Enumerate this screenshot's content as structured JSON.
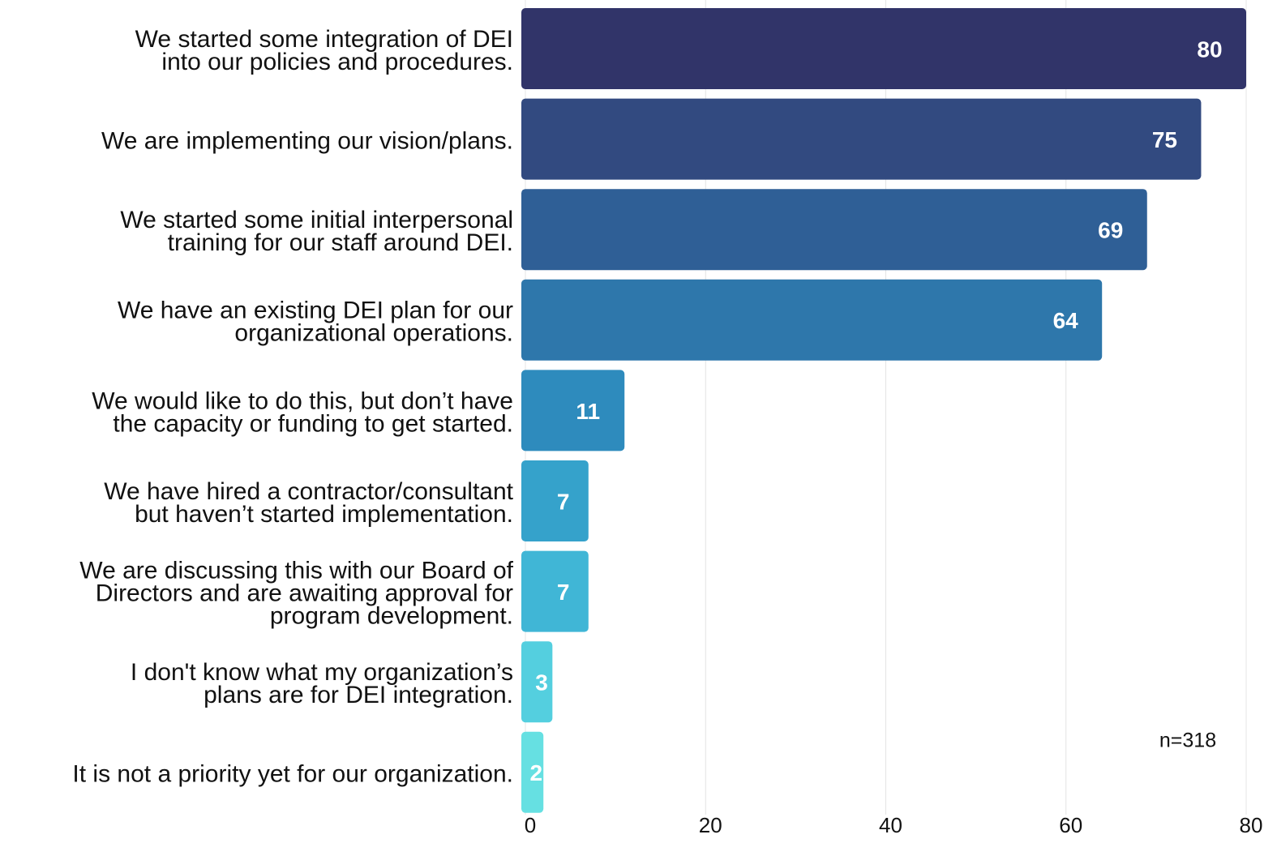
{
  "chart_data": {
    "type": "bar",
    "orientation": "horizontal",
    "categories": [
      [
        "We started some integration of DEI",
        "into our policies and procedures."
      ],
      [
        "We are implementing our vision/plans."
      ],
      [
        "We started some initial interpersonal",
        "training for our staff around DEI."
      ],
      [
        "We have an existing DEI plan for our",
        "organizational operations."
      ],
      [
        "We would like to do this, but don’t have",
        "the capacity or funding to get started."
      ],
      [
        "We have hired a contractor/consultant",
        "but haven’t started implementation."
      ],
      [
        "We are discussing this with our Board of",
        "Directors and are awaiting approval for",
        "program development."
      ],
      [
        "I don't know what my organization’s",
        "plans are for DEI integration."
      ],
      [
        "It is not a priority yet for our organization."
      ]
    ],
    "values": [
      80,
      75,
      69,
      64,
      11,
      7,
      7,
      3,
      2
    ],
    "colors": [
      "#313469",
      "#324a80",
      "#2f5f96",
      "#2e77ab",
      "#2e8bbd",
      "#35a2cb",
      "#40b6d6",
      "#54cfdf",
      "#66e0e2"
    ],
    "xlim": [
      0,
      80
    ],
    "xticks": [
      0,
      20,
      40,
      60,
      80
    ],
    "grid": true,
    "annotation": "n=318"
  }
}
